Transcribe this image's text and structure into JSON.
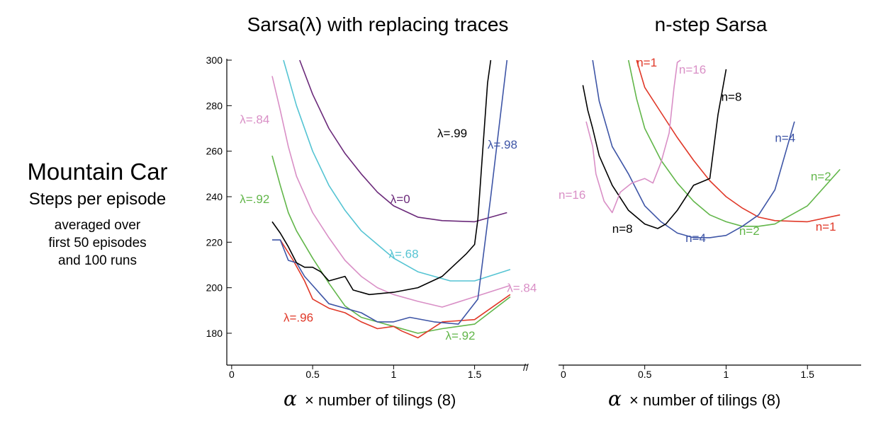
{
  "side": {
    "title": "Mountain Car",
    "subtitle": "Steps per episode",
    "note_lines": [
      "averaged over",
      "first 50 episodes",
      "and 100 runs"
    ]
  },
  "axis_break": "//",
  "chart_data": [
    {
      "type": "line",
      "title": "Sarsa(λ) with replacing traces",
      "x_symbol": "α",
      "xlabel": "× number of tilings (8)",
      "ylabel": "",
      "xlim": [
        -0.03,
        1.83
      ],
      "ylim": [
        166,
        300
      ],
      "xticks": [
        0,
        0.5,
        1,
        1.5
      ],
      "xtick_labels": [
        "0",
        "0.5",
        "1",
        "1.5"
      ],
      "yticks": [
        180,
        200,
        220,
        240,
        260,
        280,
        300
      ],
      "ytick_labels": [
        "180",
        "200",
        "220",
        "240",
        "260",
        "280",
        "300"
      ],
      "grid": false,
      "series": [
        {
          "name": "λ=0",
          "color": "#6b2a7a",
          "x": [
            0.42,
            0.5,
            0.6,
            0.7,
            0.8,
            0.9,
            1.0,
            1.15,
            1.3,
            1.5,
            1.7
          ],
          "y": [
            300,
            285,
            270,
            259,
            250,
            242,
            236,
            231,
            229.5,
            229,
            233
          ]
        },
        {
          "name": "λ=.68",
          "color": "#55c4d3",
          "x": [
            0.32,
            0.4,
            0.5,
            0.6,
            0.7,
            0.8,
            0.9,
            1.0,
            1.15,
            1.35,
            1.5,
            1.72
          ],
          "y": [
            300,
            280,
            260,
            245,
            234,
            225,
            219,
            213,
            207,
            203,
            203,
            208
          ]
        },
        {
          "name": "λ=.84",
          "color": "#d98fc6",
          "x": [
            0.25,
            0.3,
            0.35,
            0.4,
            0.5,
            0.6,
            0.7,
            0.8,
            0.9,
            1.0,
            1.15,
            1.3,
            1.5,
            1.72
          ],
          "y": [
            293,
            278,
            262,
            249,
            233,
            222,
            212,
            205,
            200,
            197,
            194,
            191.5,
            196,
            201
          ]
        },
        {
          "name": "λ=.92",
          "color": "#62b64a",
          "x": [
            0.25,
            0.3,
            0.35,
            0.4,
            0.5,
            0.6,
            0.7,
            0.8,
            0.9,
            1.0,
            1.15,
            1.3,
            1.5,
            1.72
          ],
          "y": [
            258,
            245,
            233,
            225,
            213,
            202,
            192,
            187,
            185,
            183,
            180,
            182,
            184,
            196
          ]
        },
        {
          "name": "λ=.96",
          "color": "#e03828",
          "x": [
            0.3,
            0.38,
            0.45,
            0.5,
            0.6,
            0.7,
            0.8,
            0.9,
            1.0,
            1.05,
            1.15,
            1.3,
            1.5,
            1.72
          ],
          "y": [
            221,
            212,
            203,
            195,
            191,
            189,
            185,
            182,
            183,
            181,
            178,
            185,
            186,
            197
          ]
        },
        {
          "name": "λ=.98",
          "color": "#3e55a6",
          "x": [
            0.25,
            0.3,
            0.35,
            0.4,
            0.45,
            0.5,
            0.55,
            0.6,
            0.7,
            0.8,
            0.9,
            1.0,
            1.1,
            1.25,
            1.4,
            1.52,
            1.6,
            1.7
          ],
          "y": [
            221,
            221,
            212,
            211,
            205,
            201,
            197,
            193,
            191,
            189,
            185,
            185,
            187,
            185,
            184,
            195,
            240,
            300
          ]
        },
        {
          "name": "λ=.99",
          "color": "#000000",
          "x": [
            0.25,
            0.3,
            0.35,
            0.4,
            0.45,
            0.5,
            0.55,
            0.6,
            0.7,
            0.75,
            0.85,
            1.0,
            1.15,
            1.3,
            1.45,
            1.5,
            1.52,
            1.55,
            1.58,
            1.6
          ],
          "y": [
            229,
            224,
            218,
            211,
            209,
            209,
            207,
            203,
            205,
            199,
            197,
            198,
            200,
            205,
            215,
            219,
            230,
            260,
            290,
            300
          ]
        }
      ],
      "labels": [
        {
          "text": "λ=.84",
          "color": "#d98fc6",
          "x": 0.05,
          "y": 274
        },
        {
          "text": "λ=.92",
          "color": "#62b64a",
          "x": 0.05,
          "y": 239
        },
        {
          "text": "λ=0",
          "color": "#6b2a7a",
          "x": 0.98,
          "y": 239
        },
        {
          "text": "λ=.68",
          "color": "#55c4d3",
          "x": 0.97,
          "y": 215
        },
        {
          "text": "λ=.84",
          "color": "#d98fc6",
          "x": 1.7,
          "y": 200
        },
        {
          "text": "λ=.96",
          "color": "#e03828",
          "x": 0.32,
          "y": 187
        },
        {
          "text": "λ=.92",
          "color": "#62b64a",
          "x": 1.32,
          "y": 179
        },
        {
          "text": "λ=.99",
          "color": "#000000",
          "x": 1.27,
          "y": 268
        },
        {
          "text": "λ=.98",
          "color": "#3e55a6",
          "x": 1.58,
          "y": 263
        }
      ]
    },
    {
      "type": "line",
      "title": "n-step Sarsa",
      "x_symbol": "α",
      "xlabel": "× number of tilings (8)",
      "ylabel": "",
      "xlim": [
        -0.03,
        1.83
      ],
      "ylim": [
        166,
        300
      ],
      "xticks": [
        0,
        0.5,
        1,
        1.5
      ],
      "xtick_labels": [
        "0",
        "0.5",
        "1",
        "1.5"
      ],
      "grid": false,
      "series": [
        {
          "name": "n=1",
          "color": "#e03828",
          "x": [
            0.45,
            0.5,
            0.6,
            0.7,
            0.8,
            0.9,
            1.0,
            1.1,
            1.2,
            1.3,
            1.5,
            1.7
          ],
          "y": [
            300,
            288,
            277,
            266,
            256,
            247,
            240,
            235,
            231,
            229.5,
            229,
            232
          ]
        },
        {
          "name": "n=2",
          "color": "#62b64a",
          "x": [
            0.4,
            0.45,
            0.5,
            0.6,
            0.7,
            0.8,
            0.9,
            1.0,
            1.1,
            1.2,
            1.3,
            1.5,
            1.7
          ],
          "y": [
            300,
            283,
            270,
            256,
            246,
            238,
            232,
            229,
            227,
            227,
            228,
            236,
            252
          ]
        },
        {
          "name": "n=4",
          "color": "#3e55a6",
          "x": [
            0.18,
            0.22,
            0.3,
            0.4,
            0.5,
            0.6,
            0.7,
            0.8,
            0.9,
            1.0,
            1.1,
            1.2,
            1.3,
            1.42
          ],
          "y": [
            300,
            282,
            262,
            250,
            236,
            229,
            224,
            222,
            222,
            223,
            227,
            232,
            243,
            273
          ]
        },
        {
          "name": "n=8",
          "color": "#000000",
          "x": [
            0.12,
            0.15,
            0.18,
            0.22,
            0.3,
            0.4,
            0.5,
            0.58,
            0.63,
            0.7,
            0.8,
            0.9,
            0.95,
            1.0
          ],
          "y": [
            289,
            278,
            270,
            258,
            245,
            234,
            228,
            226,
            228,
            234,
            245,
            248,
            276,
            296
          ]
        },
        {
          "name": "n=16",
          "color": "#d98fc6",
          "x": [
            0.14,
            0.18,
            0.2,
            0.25,
            0.3,
            0.35,
            0.42,
            0.5,
            0.55,
            0.6,
            0.65,
            0.68,
            0.7,
            0.72
          ],
          "y": [
            273,
            262,
            250,
            238,
            233,
            242,
            246,
            248,
            246,
            255,
            268,
            288,
            299,
            300
          ]
        }
      ],
      "labels": [
        {
          "text": "n=1",
          "color": "#e03828",
          "x": 0.45,
          "y": 299
        },
        {
          "text": "n=16",
          "color": "#d98fc6",
          "x": 0.71,
          "y": 296
        },
        {
          "text": "n=8",
          "color": "#000000",
          "x": 0.97,
          "y": 284
        },
        {
          "text": "n=4",
          "color": "#3e55a6",
          "x": 1.3,
          "y": 266
        },
        {
          "text": "n=2",
          "color": "#62b64a",
          "x": 1.52,
          "y": 249
        },
        {
          "text": "n=16",
          "color": "#d98fc6",
          "x": -0.03,
          "y": 241
        },
        {
          "text": "n=8",
          "color": "#000000",
          "x": 0.3,
          "y": 226
        },
        {
          "text": "n=4",
          "color": "#3e55a6",
          "x": 0.75,
          "y": 222
        },
        {
          "text": "n=2",
          "color": "#62b64a",
          "x": 1.08,
          "y": 225
        },
        {
          "text": "n=1",
          "color": "#e03828",
          "x": 1.55,
          "y": 227
        }
      ]
    }
  ]
}
